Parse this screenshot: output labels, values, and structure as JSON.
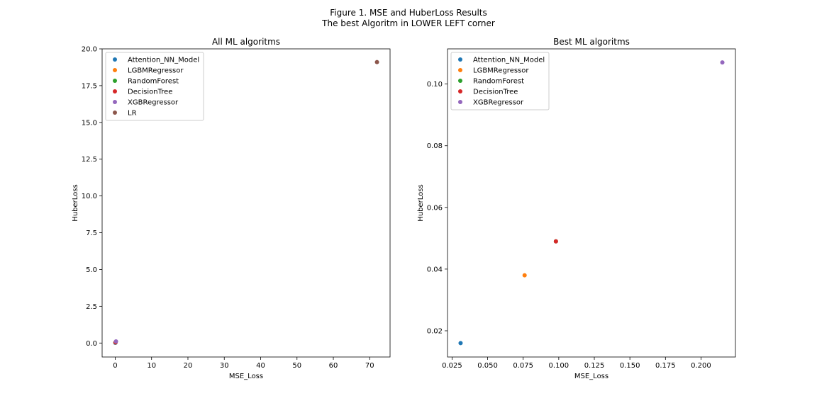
{
  "figure": {
    "title_line1": "Figure 1. MSE and HuberLoss Results",
    "title_line2": "The best Algoritm in LOWER LEFT corner"
  },
  "chart_data": [
    {
      "type": "scatter",
      "title": "All ML algoritms",
      "xlabel": "MSE_Loss",
      "ylabel": "HuberLoss",
      "xlim": [
        -3.6,
        75.6
      ],
      "ylim": [
        -0.95,
        20.0
      ],
      "xticks": [
        0,
        10,
        20,
        30,
        40,
        50,
        60,
        70
      ],
      "xtick_labels": [
        "0",
        "10",
        "20",
        "30",
        "40",
        "50",
        "60",
        "70"
      ],
      "yticks": [
        0.0,
        2.5,
        5.0,
        7.5,
        10.0,
        12.5,
        15.0,
        17.5,
        20.0
      ],
      "ytick_labels": [
        "0.0",
        "2.5",
        "5.0",
        "7.5",
        "10.0",
        "12.5",
        "15.0",
        "17.5",
        "20.0"
      ],
      "legend_position": "upper-left",
      "grid": false,
      "series": [
        {
          "name": "Attention_NN_Model",
          "color": "#1f77b4",
          "x": [
            0.031
          ],
          "y": [
            0.016
          ]
        },
        {
          "name": "LGBMRegressor",
          "color": "#ff7f0e",
          "x": [
            0.076
          ],
          "y": [
            0.038
          ]
        },
        {
          "name": "RandomForest",
          "color": "#2ca02c",
          "x": [
            0.098
          ],
          "y": [
            0.049
          ]
        },
        {
          "name": "DecisionTree",
          "color": "#d62728",
          "x": [
            0.098
          ],
          "y": [
            0.049
          ]
        },
        {
          "name": "XGBRegressor",
          "color": "#9467bd",
          "x": [
            0.215
          ],
          "y": [
            0.107
          ]
        },
        {
          "name": "LR",
          "color": "#8c564b",
          "x": [
            72.0
          ],
          "y": [
            19.1
          ]
        }
      ]
    },
    {
      "type": "scatter",
      "title": "Best ML algoritms",
      "xlabel": "MSE_Loss",
      "ylabel": "HuberLoss",
      "xlim": [
        0.0218,
        0.2242
      ],
      "ylim": [
        0.0115,
        0.1114
      ],
      "xticks": [
        0.025,
        0.05,
        0.075,
        0.1,
        0.125,
        0.15,
        0.175,
        0.2
      ],
      "xtick_labels": [
        "0.025",
        "0.050",
        "0.075",
        "0.100",
        "0.125",
        "0.150",
        "0.175",
        "0.200"
      ],
      "yticks": [
        0.02,
        0.04,
        0.06,
        0.08,
        0.1
      ],
      "ytick_labels": [
        "0.02",
        "0.04",
        "0.06",
        "0.08",
        "0.10"
      ],
      "legend_position": "upper-left",
      "grid": false,
      "series": [
        {
          "name": "Attention_NN_Model",
          "color": "#1f77b4",
          "x": [
            0.031
          ],
          "y": [
            0.016
          ]
        },
        {
          "name": "LGBMRegressor",
          "color": "#ff7f0e",
          "x": [
            0.076
          ],
          "y": [
            0.038
          ]
        },
        {
          "name": "RandomForest",
          "color": "#2ca02c",
          "x": [
            0.098
          ],
          "y": [
            0.049
          ]
        },
        {
          "name": "DecisionTree",
          "color": "#d62728",
          "x": [
            0.098
          ],
          "y": [
            0.049
          ]
        },
        {
          "name": "XGBRegressor",
          "color": "#9467bd",
          "x": [
            0.215
          ],
          "y": [
            0.107
          ]
        }
      ]
    }
  ]
}
